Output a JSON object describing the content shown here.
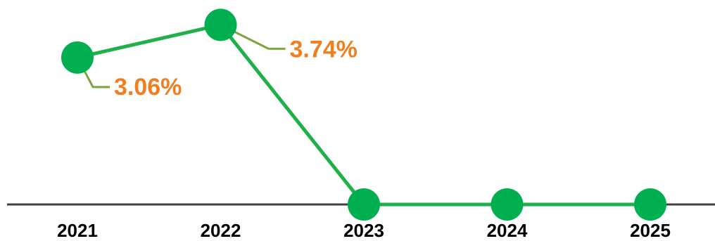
{
  "chart_data": {
    "type": "line",
    "categories": [
      "2021",
      "2022",
      "2023",
      "2024",
      "2025"
    ],
    "series": [
      {
        "values": [
          3.06,
          3.74,
          0,
          0,
          0
        ],
        "data_labels": [
          "3.06%",
          "3.74%",
          null,
          null,
          null
        ]
      }
    ],
    "title": "",
    "xlabel": "",
    "ylabel": "",
    "ylim": [
      0,
      3.95
    ],
    "grid": false,
    "legend": "none",
    "colors": {
      "series": "#1fb04a",
      "marker": "#00b050",
      "leader": "#7aa640",
      "data_label": "#f07f22",
      "axis": "#404040",
      "tick_label": "#000000"
    }
  }
}
